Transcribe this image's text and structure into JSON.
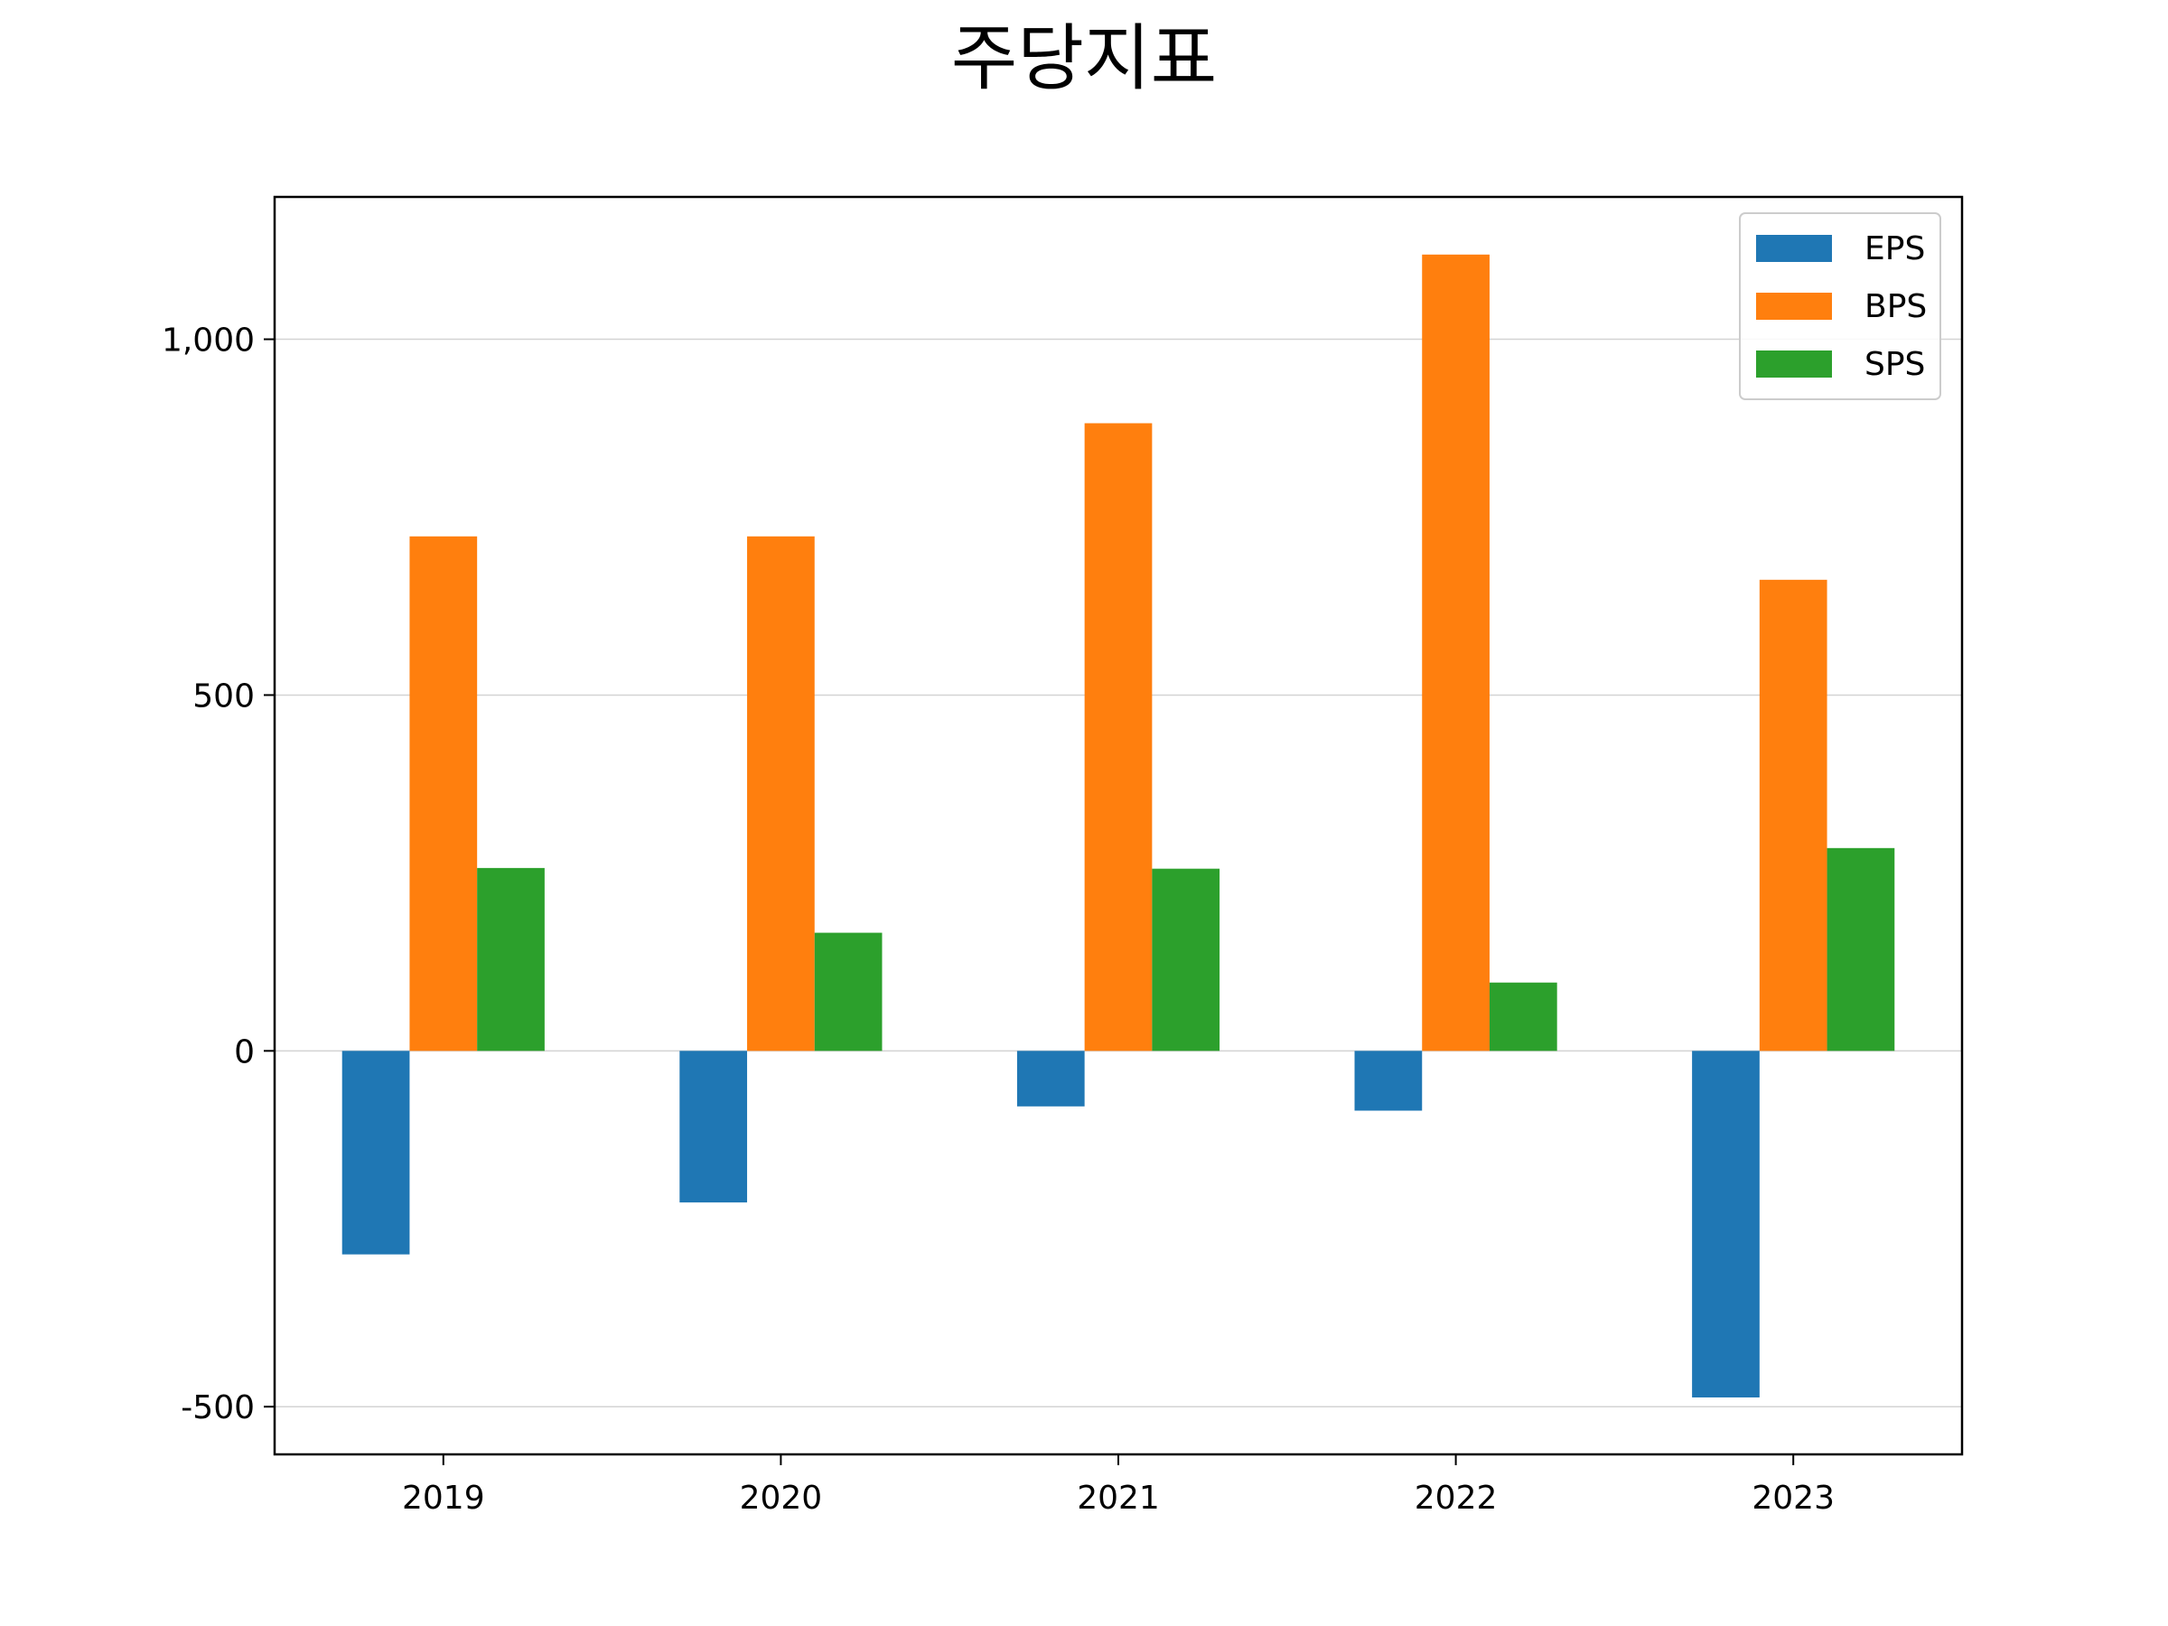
{
  "chart_data": {
    "type": "bar",
    "title": "주당지표",
    "categories": [
      "2019",
      "2020",
      "2021",
      "2022",
      "2023"
    ],
    "series": [
      {
        "name": "EPS",
        "color": "#1f77b4",
        "values": [
          -286,
          -213,
          -78,
          -84,
          -487
        ]
      },
      {
        "name": "BPS",
        "color": "#ff7f0e",
        "values": [
          723,
          723,
          882,
          1119,
          662
        ]
      },
      {
        "name": "SPS",
        "color": "#2ca02c",
        "values": [
          257,
          166,
          256,
          96,
          285
        ]
      }
    ],
    "xlabel": "",
    "ylabel": "",
    "ylim": [
      -567,
      1200
    ],
    "yticks": [
      -500,
      0,
      500,
      1000
    ],
    "ytick_labels": [
      "-500",
      "0",
      "500",
      "1,000"
    ],
    "grid": "horizontal",
    "legend_position": "top-right"
  }
}
